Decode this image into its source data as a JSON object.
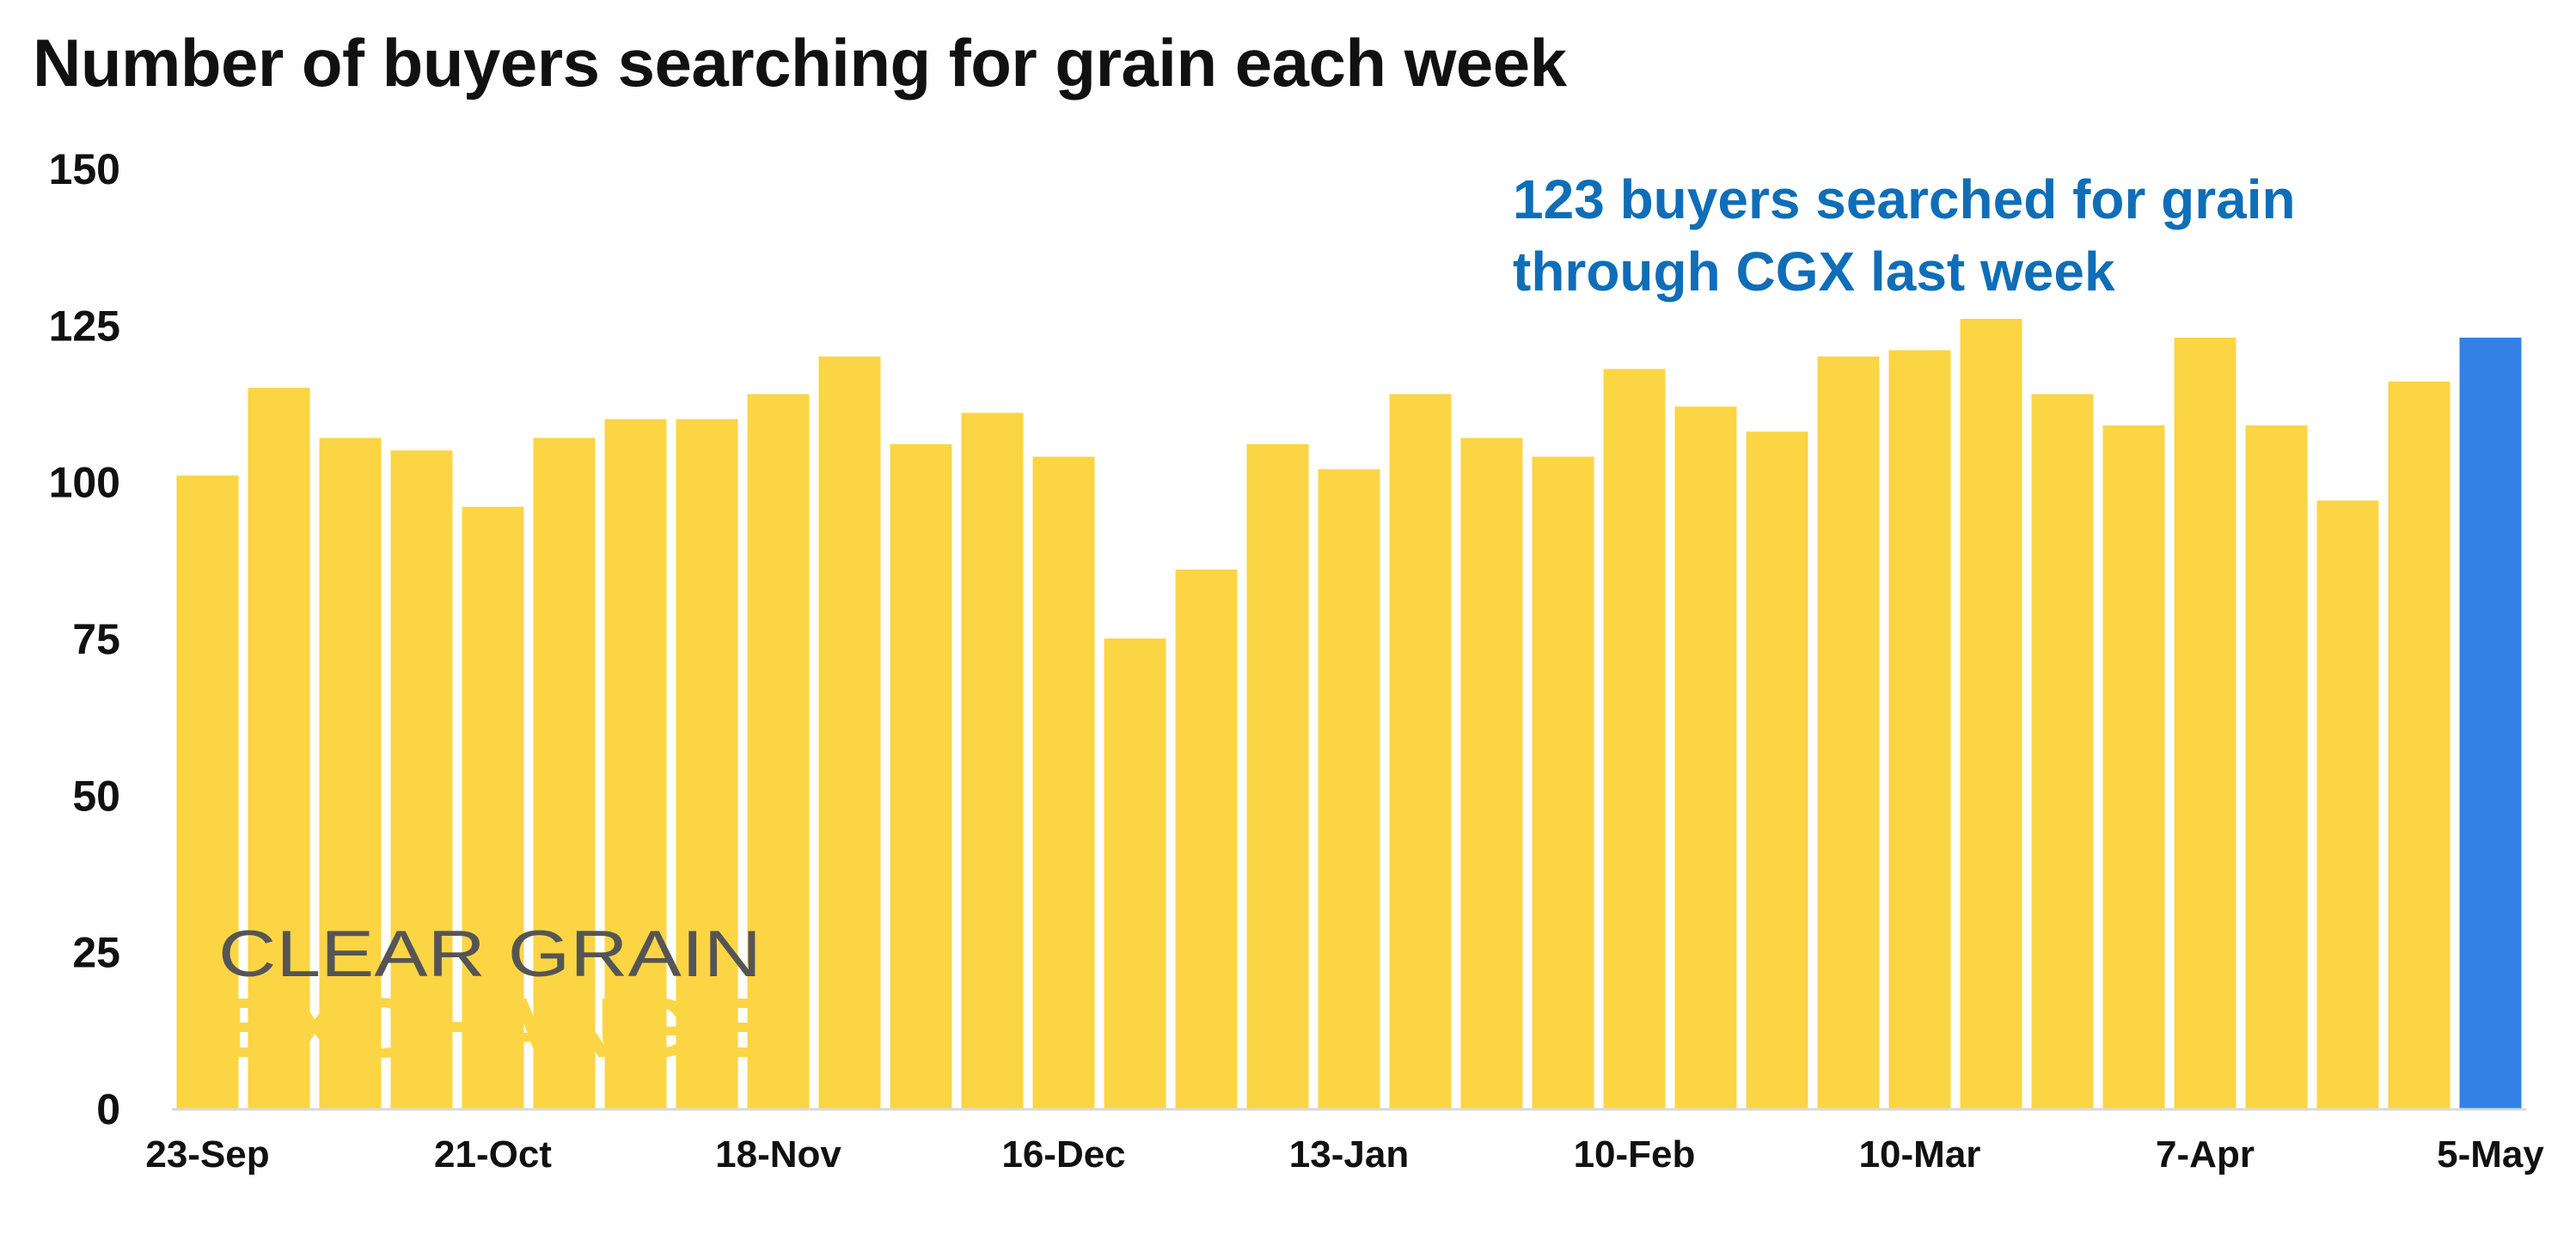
{
  "title": "Number of buyers searching for grain each week",
  "annotation": {
    "line1": "123 buyers searched for grain",
    "line2": "through CGX last week",
    "color": "#0F6EB7"
  },
  "logo": {
    "line1": "CLEAR GRAIN",
    "line2": "EXCHANGE",
    "color1": "#555555",
    "color2": "#FCD545"
  },
  "colors": {
    "bar": "#FCD545",
    "highlight": "#3381E4",
    "axis": "#D9D9D9"
  },
  "chart_data": {
    "type": "bar",
    "title": "Number of buyers searching for grain each week",
    "xlabel": "",
    "ylabel": "",
    "ylim": [
      0,
      150
    ],
    "yticks": [
      0,
      25,
      50,
      75,
      100,
      125,
      150
    ],
    "grid": false,
    "legend": "none",
    "categories": [
      "23-Sep",
      "30-Sep",
      "7-Oct",
      "14-Oct",
      "21-Oct",
      "28-Oct",
      "4-Nov",
      "11-Nov",
      "18-Nov",
      "25-Nov",
      "2-Dec",
      "9-Dec",
      "16-Dec",
      "23-Dec",
      "30-Dec",
      "6-Jan",
      "13-Jan",
      "20-Jan",
      "27-Jan",
      "3-Feb",
      "10-Feb",
      "17-Feb",
      "24-Feb",
      "3-Mar",
      "10-Mar",
      "17-Mar",
      "24-Mar",
      "31-Mar",
      "7-Apr",
      "14-Apr",
      "21-Apr",
      "28-Apr",
      "5-May"
    ],
    "visible_tick_labels": [
      "23-Sep",
      "21-Oct",
      "18-Nov",
      "16-Dec",
      "13-Jan",
      "10-Feb",
      "10-Mar",
      "7-Apr",
      "5-May"
    ],
    "values": [
      101,
      115,
      107,
      105,
      96,
      107,
      110,
      110,
      114,
      120,
      106,
      111,
      104,
      75,
      86,
      106,
      102,
      114,
      107,
      104,
      118,
      112,
      108,
      120,
      121,
      126,
      114,
      109,
      123,
      109,
      97,
      116,
      123
    ],
    "highlight_index": 32
  }
}
